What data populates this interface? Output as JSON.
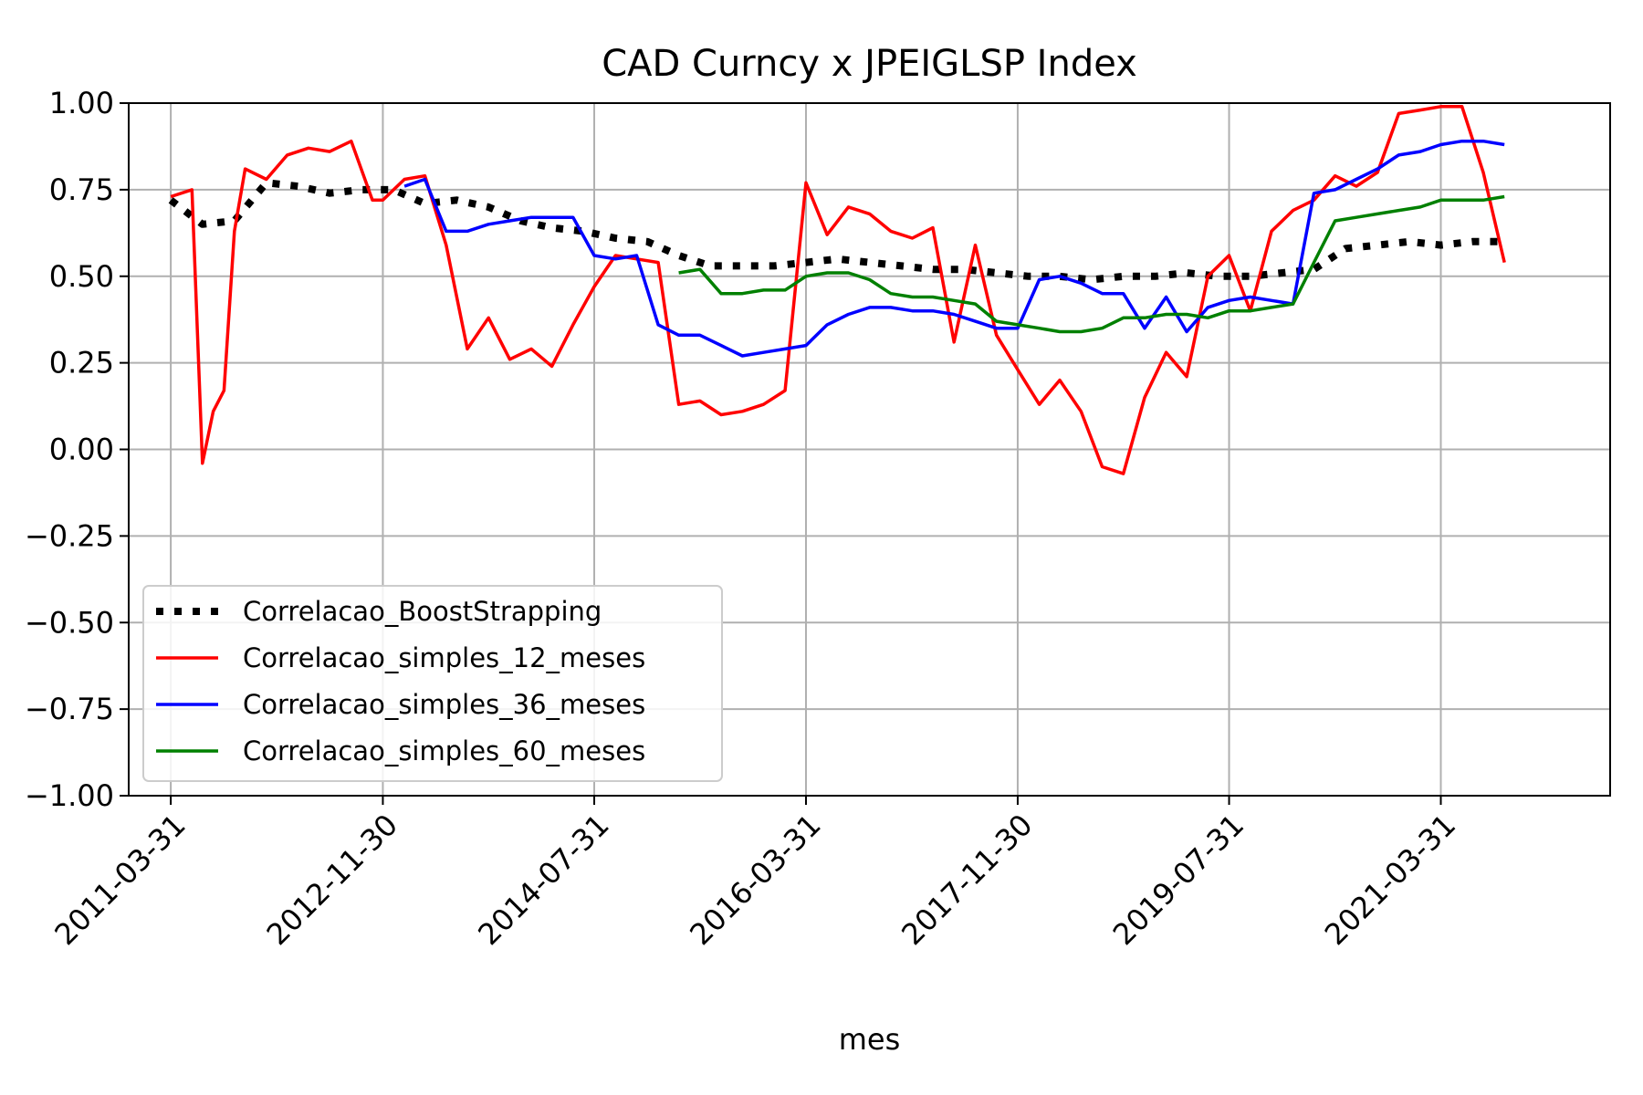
{
  "chart_data": {
    "type": "line",
    "title": "CAD Curncy x JPEIGLSP Index",
    "xlabel": "mes",
    "ylabel": "",
    "ylim": [
      -1.0,
      1.0
    ],
    "yticks": [
      -1.0,
      -0.75,
      -0.5,
      -0.25,
      0.0,
      0.25,
      0.5,
      0.75,
      1.0
    ],
    "ytick_labels": [
      "−1.00",
      "−0.75",
      "−0.50",
      "−0.25",
      "0.00",
      "0.25",
      "0.50",
      "0.75",
      "1.00"
    ],
    "xlim": [
      "2010-11-30",
      "2022-07-31"
    ],
    "xticks": [
      "2011-03-31",
      "2012-11-30",
      "2014-07-31",
      "2016-03-31",
      "2017-11-30",
      "2019-07-31",
      "2021-03-31"
    ],
    "grid": true,
    "legend_position": "lower-left",
    "series": [
      {
        "name": "Correlacao_BoostStrapping",
        "color": "#000000",
        "style": "dotted",
        "x": [
          "2011-03-31",
          "2011-06-30",
          "2011-09-30",
          "2011-12-31",
          "2012-03-31",
          "2012-06-30",
          "2012-09-30",
          "2012-12-31",
          "2013-03-31",
          "2013-06-30",
          "2013-09-30",
          "2013-12-31",
          "2014-03-31",
          "2014-06-30",
          "2014-09-30",
          "2014-12-31",
          "2015-03-31",
          "2015-06-30",
          "2015-09-30",
          "2015-12-31",
          "2016-03-31",
          "2016-06-30",
          "2016-09-30",
          "2016-12-31",
          "2017-03-31",
          "2017-06-30",
          "2017-09-30",
          "2017-12-31",
          "2018-03-31",
          "2018-06-30",
          "2018-09-30",
          "2018-12-31",
          "2019-03-31",
          "2019-06-30",
          "2019-09-30",
          "2019-12-31",
          "2020-03-31",
          "2020-06-30",
          "2020-09-30",
          "2020-12-31",
          "2021-03-31",
          "2021-06-30",
          "2021-09-30"
        ],
        "values": [
          0.72,
          0.65,
          0.66,
          0.77,
          0.76,
          0.74,
          0.75,
          0.75,
          0.71,
          0.72,
          0.7,
          0.66,
          0.64,
          0.63,
          0.61,
          0.6,
          0.56,
          0.53,
          0.53,
          0.53,
          0.54,
          0.55,
          0.54,
          0.53,
          0.52,
          0.52,
          0.51,
          0.5,
          0.5,
          0.49,
          0.5,
          0.5,
          0.51,
          0.5,
          0.5,
          0.51,
          0.52,
          0.58,
          0.59,
          0.6,
          0.59,
          0.6,
          0.6
        ]
      },
      {
        "name": "Correlacao_simples_12_meses",
        "color": "#ff0000",
        "style": "solid",
        "x": [
          "2011-03-31",
          "2011-05-31",
          "2011-06-30",
          "2011-07-31",
          "2011-08-31",
          "2011-09-30",
          "2011-10-31",
          "2011-12-31",
          "2012-02-29",
          "2012-04-30",
          "2012-06-30",
          "2012-08-31",
          "2012-10-31",
          "2012-11-30",
          "2013-01-31",
          "2013-03-31",
          "2013-05-31",
          "2013-07-31",
          "2013-09-30",
          "2013-11-30",
          "2014-01-31",
          "2014-03-31",
          "2014-05-31",
          "2014-07-31",
          "2014-09-30",
          "2014-11-30",
          "2015-01-31",
          "2015-03-31",
          "2015-05-31",
          "2015-07-31",
          "2015-09-30",
          "2015-11-30",
          "2016-01-31",
          "2016-03-31",
          "2016-05-31",
          "2016-07-31",
          "2016-09-30",
          "2016-11-30",
          "2017-01-31",
          "2017-03-31",
          "2017-05-31",
          "2017-07-31",
          "2017-09-30",
          "2017-11-30",
          "2018-01-31",
          "2018-03-31",
          "2018-05-31",
          "2018-07-31",
          "2018-09-30",
          "2018-11-30",
          "2019-01-31",
          "2019-03-31",
          "2019-05-31",
          "2019-07-31",
          "2019-09-30",
          "2019-11-30",
          "2020-01-31",
          "2020-03-31",
          "2020-05-31",
          "2020-07-31",
          "2020-09-30",
          "2020-11-30",
          "2021-01-31",
          "2021-03-31",
          "2021-05-31",
          "2021-07-31",
          "2021-09-30"
        ],
        "values": [
          0.73,
          0.75,
          -0.04,
          0.11,
          0.17,
          0.63,
          0.81,
          0.78,
          0.85,
          0.87,
          0.86,
          0.89,
          0.72,
          0.72,
          0.78,
          0.79,
          0.59,
          0.29,
          0.38,
          0.26,
          0.29,
          0.24,
          0.36,
          0.47,
          0.56,
          0.55,
          0.54,
          0.13,
          0.14,
          0.1,
          0.11,
          0.13,
          0.17,
          0.77,
          0.62,
          0.7,
          0.68,
          0.63,
          0.61,
          0.64,
          0.31,
          0.59,
          0.33,
          0.23,
          0.13,
          0.2,
          0.11,
          -0.05,
          -0.07,
          0.15,
          0.28,
          0.21,
          0.5,
          0.56,
          0.4,
          0.63,
          0.69,
          0.72,
          0.79,
          0.76,
          0.8,
          0.97,
          0.98,
          0.99,
          0.99,
          0.8,
          0.54
        ]
      },
      {
        "name": "Correlacao_simples_36_meses",
        "color": "#0000ff",
        "style": "solid",
        "x": [
          "2013-01-31",
          "2013-03-31",
          "2013-05-31",
          "2013-07-31",
          "2013-09-30",
          "2013-11-30",
          "2014-01-31",
          "2014-03-31",
          "2014-05-31",
          "2014-07-31",
          "2014-09-30",
          "2014-11-30",
          "2015-01-31",
          "2015-03-31",
          "2015-05-31",
          "2015-07-31",
          "2015-09-30",
          "2015-11-30",
          "2016-01-31",
          "2016-03-31",
          "2016-05-31",
          "2016-07-31",
          "2016-09-30",
          "2016-11-30",
          "2017-01-31",
          "2017-03-31",
          "2017-05-31",
          "2017-07-31",
          "2017-09-30",
          "2017-11-30",
          "2018-01-31",
          "2018-03-31",
          "2018-05-31",
          "2018-07-31",
          "2018-09-30",
          "2018-11-30",
          "2019-01-31",
          "2019-03-31",
          "2019-05-31",
          "2019-07-31",
          "2019-09-30",
          "2019-11-30",
          "2020-01-31",
          "2020-03-31",
          "2020-05-31",
          "2020-07-31",
          "2020-09-30",
          "2020-11-30",
          "2021-01-31",
          "2021-03-31",
          "2021-05-31",
          "2021-07-31",
          "2021-09-30"
        ],
        "values": [
          0.76,
          0.78,
          0.63,
          0.63,
          0.65,
          0.66,
          0.67,
          0.67,
          0.67,
          0.56,
          0.55,
          0.56,
          0.36,
          0.33,
          0.33,
          0.3,
          0.27,
          0.28,
          0.29,
          0.3,
          0.36,
          0.39,
          0.41,
          0.41,
          0.4,
          0.4,
          0.39,
          0.37,
          0.35,
          0.35,
          0.49,
          0.5,
          0.48,
          0.45,
          0.45,
          0.35,
          0.44,
          0.34,
          0.41,
          0.43,
          0.44,
          0.43,
          0.42,
          0.74,
          0.75,
          0.78,
          0.81,
          0.85,
          0.86,
          0.88,
          0.89,
          0.89,
          0.88
        ]
      },
      {
        "name": "Correlacao_simples_60_meses",
        "color": "#008000",
        "style": "solid",
        "x": [
          "2015-03-31",
          "2015-05-31",
          "2015-07-31",
          "2015-09-30",
          "2015-11-30",
          "2016-01-31",
          "2016-03-31",
          "2016-05-31",
          "2016-07-31",
          "2016-09-30",
          "2016-11-30",
          "2017-01-31",
          "2017-03-31",
          "2017-05-31",
          "2017-07-31",
          "2017-09-30",
          "2017-11-30",
          "2018-01-31",
          "2018-03-31",
          "2018-05-31",
          "2018-07-31",
          "2018-09-30",
          "2018-11-30",
          "2019-01-31",
          "2019-03-31",
          "2019-05-31",
          "2019-07-31",
          "2019-09-30",
          "2019-11-30",
          "2020-01-31",
          "2020-03-31",
          "2020-05-31",
          "2020-07-31",
          "2020-09-30",
          "2020-11-30",
          "2021-01-31",
          "2021-03-31",
          "2021-05-31",
          "2021-07-31",
          "2021-09-30"
        ],
        "values": [
          0.51,
          0.52,
          0.45,
          0.45,
          0.46,
          0.46,
          0.5,
          0.51,
          0.51,
          0.49,
          0.45,
          0.44,
          0.44,
          0.43,
          0.42,
          0.37,
          0.36,
          0.35,
          0.34,
          0.34,
          0.35,
          0.38,
          0.38,
          0.39,
          0.39,
          0.38,
          0.4,
          0.4,
          0.41,
          0.42,
          0.54,
          0.66,
          0.67,
          0.68,
          0.69,
          0.7,
          0.72,
          0.72,
          0.72,
          0.73
        ]
      }
    ]
  }
}
